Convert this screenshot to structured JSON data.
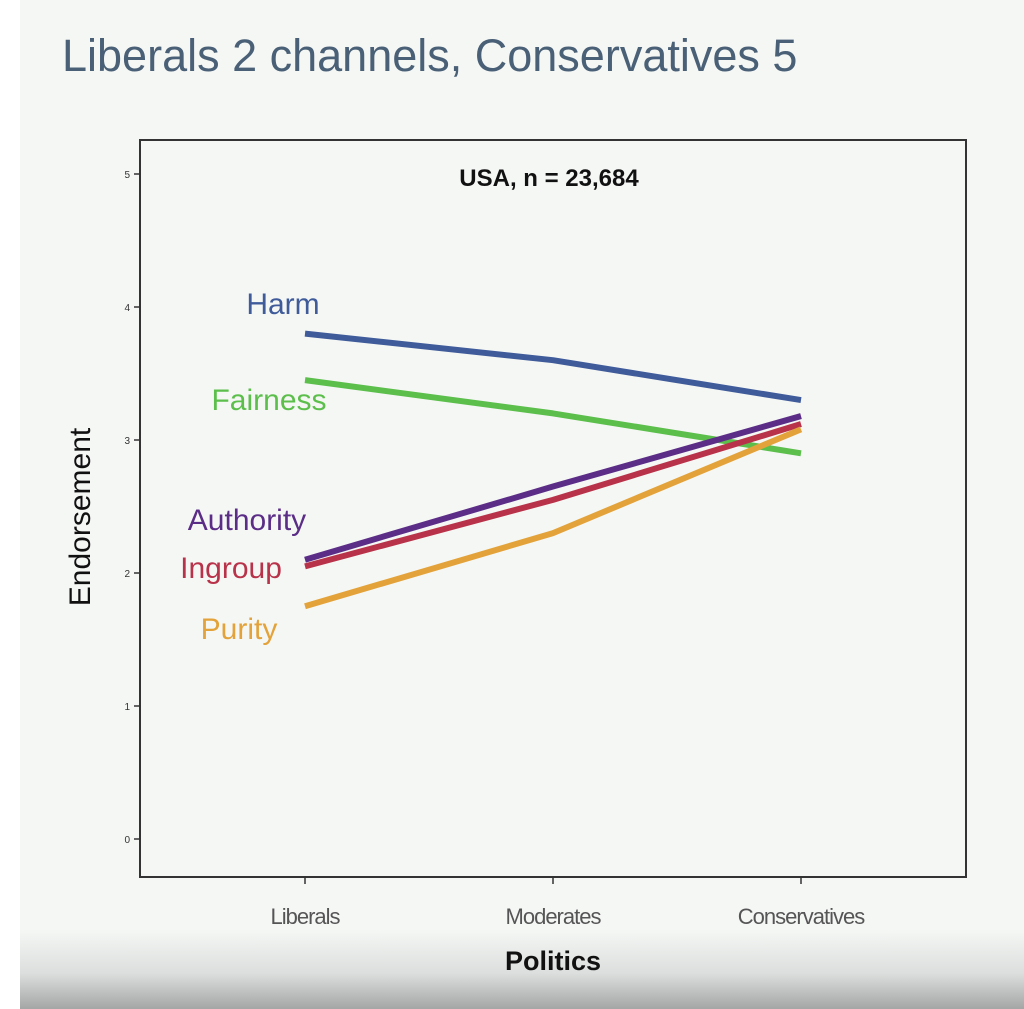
{
  "slide": {
    "title": "Liberals 2 channels, Conservatives 5"
  },
  "chart_data": {
    "type": "line",
    "title": "USA, n = 23,684",
    "xlabel": "Politics",
    "ylabel": "Endorsement",
    "categories": [
      "Liberals",
      "Moderates",
      "Conservatives"
    ],
    "ylim": [
      0,
      5
    ],
    "yticks": [
      0,
      1,
      2,
      3,
      4,
      5
    ],
    "grid": false,
    "legend": "inline labels at left of lines",
    "series": [
      {
        "name": "Harm",
        "values": [
          3.8,
          3.6,
          3.3
        ],
        "color": "#3f5b9a"
      },
      {
        "name": "Fairness",
        "values": [
          3.45,
          3.2,
          2.9
        ],
        "color": "#5cbf4c"
      },
      {
        "name": "Authority",
        "values": [
          2.1,
          2.65,
          3.18
        ],
        "color": "#5b2d86"
      },
      {
        "name": "Ingroup",
        "values": [
          2.05,
          2.55,
          3.12
        ],
        "color": "#b8334a"
      },
      {
        "name": "Purity",
        "values": [
          1.75,
          2.3,
          3.08
        ],
        "color": "#e3a33a"
      }
    ]
  }
}
